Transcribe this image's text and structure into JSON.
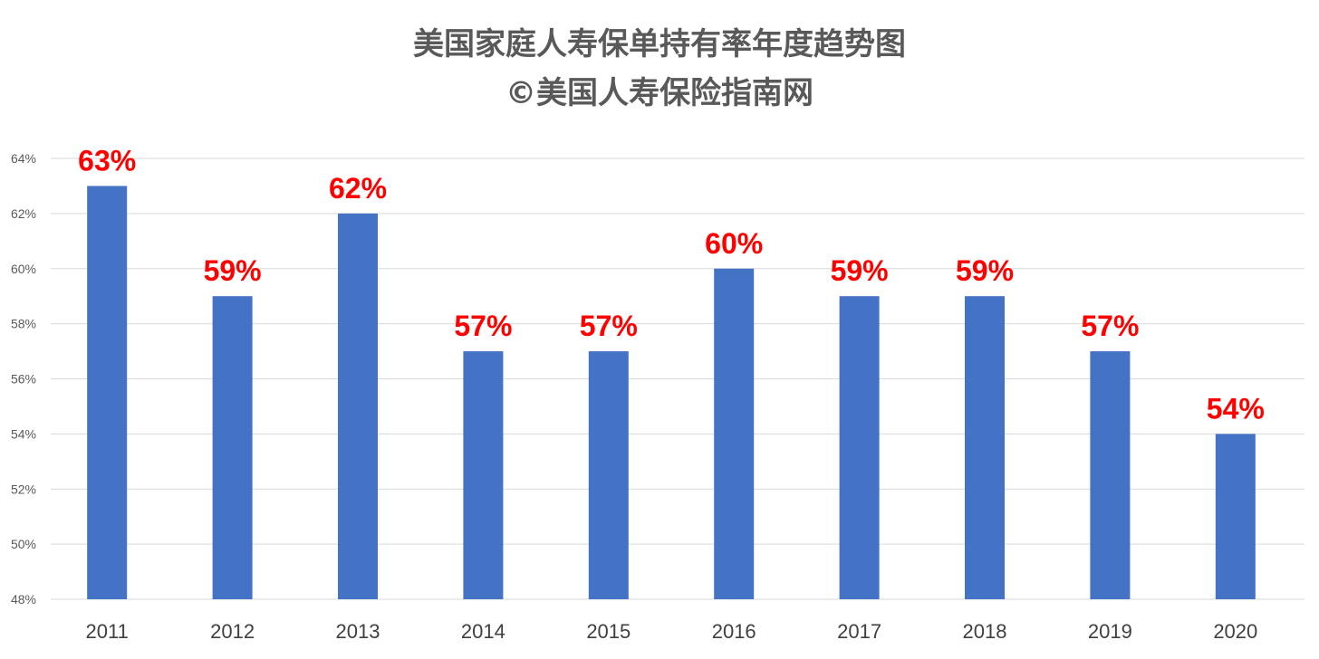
{
  "chart_data": {
    "type": "bar",
    "title": "美国家庭人寿保单持有率年度趋势图",
    "subtitle": "©美国人寿保险指南网",
    "categories": [
      "2011",
      "2012",
      "2013",
      "2014",
      "2015",
      "2016",
      "2017",
      "2018",
      "2019",
      "2020"
    ],
    "values": [
      63,
      59,
      62,
      57,
      57,
      60,
      59,
      59,
      57,
      54
    ],
    "data_labels": [
      "63%",
      "59%",
      "62%",
      "57%",
      "57%",
      "60%",
      "59%",
      "59%",
      "57%",
      "54%"
    ],
    "ylim": [
      48,
      64
    ],
    "yticks": [
      48,
      50,
      52,
      54,
      56,
      58,
      60,
      62,
      64
    ],
    "ytick_labels": [
      "48%",
      "50%",
      "52%",
      "54%",
      "56%",
      "58%",
      "60%",
      "62%",
      "64%"
    ],
    "grid": true,
    "legend": "none",
    "bar_color": "#4472C4",
    "label_color": "#FF0000",
    "grid_color": "#D9D9D9"
  }
}
